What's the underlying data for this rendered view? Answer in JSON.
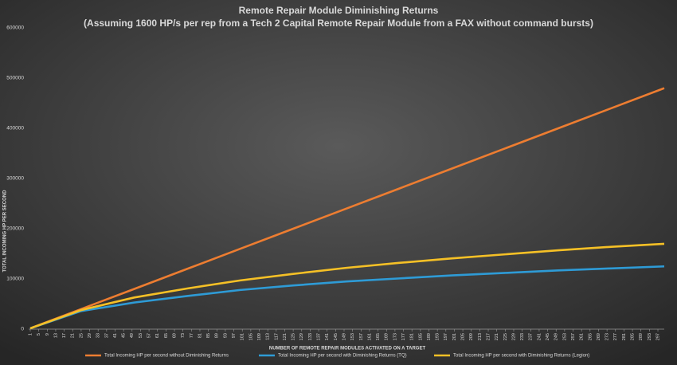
{
  "chart_data": {
    "type": "line",
    "title": "Remote Repair Module Diminishing Returns",
    "subtitle": "(Assuming 1600 HP/s per rep from a Tech 2 Capital Remote Repair Module from a FAX without command bursts)",
    "x_label": "NUMBER OF REMOTE REPAIR MODULES ACTIVATED ON A TARGET",
    "y_label": "TOTAL INCOMING HP PER SECOND",
    "x": [
      1,
      25,
      50,
      75,
      100,
      125,
      150,
      175,
      200,
      225,
      250,
      275,
      300
    ],
    "series": [
      {
        "name": "Total Incoming HP per second without Diminishing Returns",
        "color": "#ed7d31",
        "values": [
          1600,
          40000,
          80000,
          120000,
          160000,
          200000,
          240000,
          280000,
          320000,
          360000,
          400000,
          440000,
          480000
        ]
      },
      {
        "name": "Total Incoming HP per second with Diminishing Returns (TQ)",
        "color": "#2e9bd6",
        "values": [
          1600,
          36000,
          53000,
          66000,
          78000,
          87000,
          95000,
          101000,
          107000,
          112000,
          117000,
          121000,
          125000
        ]
      },
      {
        "name": "Total Incoming HP per second with Diminishing Returns (Legion)",
        "color": "#f5c026",
        "values": [
          1600,
          38000,
          63000,
          81000,
          97000,
          110000,
          122000,
          132000,
          141000,
          149000,
          157000,
          164000,
          170000
        ]
      }
    ],
    "xlim": [
      1,
      300
    ],
    "xticks": [
      1,
      5,
      9,
      13,
      17,
      21,
      25,
      29,
      33,
      37,
      41,
      45,
      49,
      53,
      57,
      61,
      65,
      69,
      73,
      77,
      81,
      85,
      89,
      93,
      97,
      101,
      105,
      109,
      113,
      117,
      121,
      125,
      129,
      133,
      137,
      141,
      145,
      149,
      153,
      157,
      161,
      165,
      169,
      173,
      177,
      181,
      185,
      189,
      193,
      197,
      201,
      205,
      209,
      213,
      217,
      221,
      225,
      229,
      233,
      237,
      241,
      245,
      249,
      253,
      257,
      261,
      265,
      269,
      273,
      277,
      281,
      285,
      289,
      293,
      297
    ],
    "ylim": [
      0,
      600000
    ],
    "yticks": [
      0,
      100000,
      200000,
      300000,
      400000,
      500000,
      600000
    ],
    "legend": "bottom"
  }
}
